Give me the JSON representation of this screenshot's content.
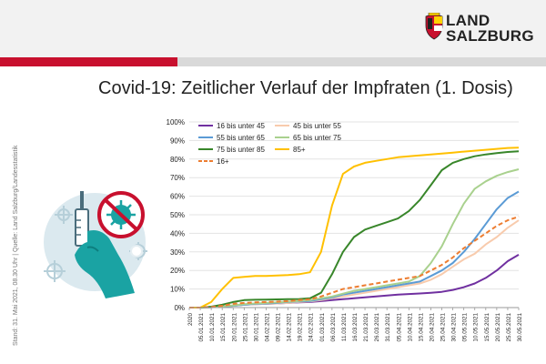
{
  "header": {
    "logo_line1": "LAND",
    "logo_line2": "SALZBURG",
    "colors": {
      "red": "#c8102e",
      "grey": "#d9d9d9"
    }
  },
  "title": "Covid-19: Zeitlicher Verlauf der Impfraten (1. Dosis)",
  "side_note": "Stand: 31. Mai 2021, 08.30 Uhr  |  Quelle: Land Salzburg/Landesstatistik",
  "illustration": {
    "icon": "vaccine-syringe-virus-icon"
  },
  "chart_data": {
    "type": "line",
    "ylim": [
      0,
      100
    ],
    "yticks": [
      "0%",
      "10%",
      "20%",
      "30%",
      "40%",
      "50%",
      "60%",
      "70%",
      "80%",
      "90%",
      "100%"
    ],
    "xlabels": [
      "2020",
      "05.01.2021",
      "10.01.2021",
      "15.01.2021",
      "20.01.2021",
      "25.01.2021",
      "30.01.2021",
      "04.02.2021",
      "09.02.2021",
      "14.02.2021",
      "19.02.2021",
      "24.02.2021",
      "01.03.2021",
      "06.03.2021",
      "11.03.2021",
      "16.03.2021",
      "21.03.2021",
      "26.03.2021",
      "31.03.2021",
      "05.04.2021",
      "10.04.2021",
      "15.04.2021",
      "20.04.2021",
      "25.04.2021",
      "30.04.2021",
      "05.05.2021",
      "10.05.2021",
      "15.05.2021",
      "20.05.2021",
      "25.05.2021",
      "30.05.2021"
    ],
    "x": [
      0,
      1,
      2,
      3,
      4,
      5,
      6,
      7,
      8,
      9,
      10,
      11,
      12,
      13,
      14,
      15,
      16,
      17,
      18,
      19,
      20,
      21,
      22,
      23,
      24,
      25,
      26,
      27,
      28,
      29,
      30
    ],
    "series": [
      {
        "name": "16 bis unter 45",
        "color": "#7030a0",
        "dash": false,
        "values": [
          0,
          0,
          0.2,
          0.5,
          1,
          1.5,
          1.8,
          2,
          2.2,
          2.5,
          2.8,
          3,
          3.5,
          4,
          4.5,
          5,
          5.5,
          6,
          6.5,
          7,
          7.3,
          7.6,
          8,
          8.5,
          9.5,
          11,
          13,
          16,
          20,
          25,
          28.5
        ]
      },
      {
        "name": "45 bis unter 55",
        "color": "#f8cbad",
        "dash": false,
        "values": [
          0,
          0,
          0.2,
          0.5,
          1,
          1.5,
          1.8,
          2,
          2.2,
          2.5,
          3,
          3.3,
          4,
          5,
          6,
          7,
          8,
          9,
          10,
          11,
          12,
          13,
          15,
          18,
          22,
          26,
          29,
          34,
          38,
          43,
          47
        ]
      },
      {
        "name": "55 bis unter 65",
        "color": "#5b9bd5",
        "dash": false,
        "values": [
          0,
          0,
          0.2,
          0.5,
          1,
          1.5,
          2,
          2.2,
          2.5,
          3,
          3.3,
          3.6,
          4.5,
          5.5,
          7,
          8,
          9,
          10,
          11,
          12,
          13,
          14,
          17,
          20,
          24,
          30,
          37,
          45,
          53,
          59,
          62.5
        ]
      },
      {
        "name": "65 bis unter 75",
        "color": "#a9d18e",
        "dash": false,
        "values": [
          0,
          0,
          0.3,
          0.7,
          1.2,
          1.8,
          2.2,
          2.5,
          2.8,
          3.2,
          3.6,
          4,
          5,
          6,
          7.5,
          9,
          10,
          11,
          12,
          13,
          14,
          17,
          24,
          33,
          45,
          56,
          64,
          68,
          71,
          73,
          74.5
        ]
      },
      {
        "name": "75 bis unter 85",
        "color": "#38862a",
        "dash": false,
        "values": [
          0,
          0,
          0.5,
          1.5,
          3,
          4,
          4.2,
          4.3,
          4.4,
          4.5,
          4.6,
          5,
          8,
          18,
          30,
          38,
          42,
          44,
          46,
          48,
          52,
          58,
          66,
          74,
          78,
          80,
          81.5,
          82.5,
          83.2,
          83.8,
          84.2
        ]
      },
      {
        "name": "85+",
        "color": "#ffc000",
        "dash": false,
        "values": [
          0,
          0,
          3,
          10,
          16,
          16.5,
          17,
          17,
          17.3,
          17.5,
          18,
          19,
          30,
          55,
          72,
          76,
          78,
          79,
          80,
          81,
          81.5,
          82,
          82.5,
          83,
          83.5,
          84,
          84.5,
          85,
          85.5,
          86,
          86.2
        ]
      },
      {
        "name": "16+",
        "color": "#ed7d31",
        "dash": true,
        "values": [
          0,
          0,
          0.3,
          1,
          2,
          2.5,
          2.8,
          3,
          3.2,
          3.5,
          4,
          4.5,
          6,
          8,
          10,
          11,
          12,
          13,
          14,
          15,
          16,
          17,
          20,
          23,
          27,
          32,
          36,
          40,
          44,
          47,
          49
        ]
      }
    ]
  }
}
